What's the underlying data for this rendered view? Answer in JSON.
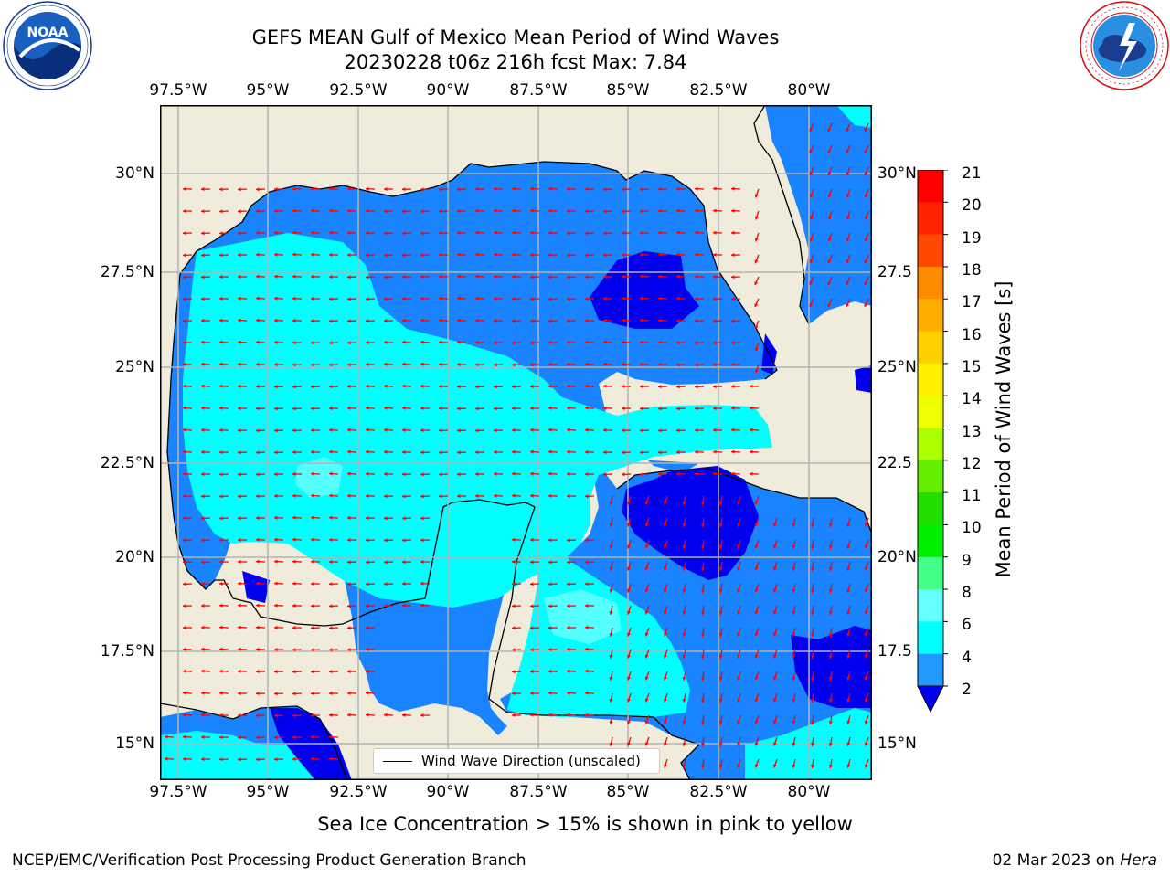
{
  "header": {
    "title_line1": "GEFS MEAN Gulf of Mexico Mean Period of Wind Waves",
    "title_line2": "20230228 t06z 216h fcst   Max: 7.84"
  },
  "logos": {
    "noaa": {
      "text": "NOAA",
      "ring_text": "NATIONAL OCEANIC AND ATMOSPHERIC ADMINISTRATION · U.S. DEPARTMENT OF COMMERCE"
    },
    "nws": {
      "ring_text": "NATIONAL WEATHER SERVICE"
    }
  },
  "axes": {
    "lon_ticks": [
      "97.5°W",
      "95°W",
      "92.5°W",
      "90°W",
      "87.5°W",
      "85°W",
      "82.5°W",
      "80°W"
    ],
    "lat_ticks": [
      "30°N",
      "27.5°N",
      "25°N",
      "22.5°N",
      "20°N",
      "17.5°N",
      "15°N"
    ],
    "lat_ticks_right": [
      "30°N",
      "27.5",
      "25°N",
      "22.5",
      "20°N",
      "17.5",
      "15°N"
    ],
    "lon_range": [
      -98,
      -78.2
    ],
    "lat_range": [
      14.0,
      31.6
    ],
    "grid": true
  },
  "colorbar": {
    "label": "Mean Period of Wind Waves [s]",
    "ticks": [
      "21",
      "20",
      "19",
      "18",
      "17",
      "16",
      "15",
      "14",
      "13",
      "12",
      "11",
      "10",
      "9",
      "8",
      "6",
      "4",
      "2"
    ],
    "colors": [
      "#ff0000",
      "#ff2400",
      "#ff4800",
      "#ff6a00",
      "#ff8c00",
      "#ffae00",
      "#ffd000",
      "#fff000",
      "#eeff00",
      "#ccff00",
      "#aaff00",
      "#66ee00",
      "#22dd00",
      "#00ee00",
      "#44ff88",
      "#99ffcc",
      "#66ffff",
      "#00ffff",
      "#2299ff"
    ],
    "extend_color": "#0000ee"
  },
  "legend": {
    "label": "Wind Wave Direction (unscaled)"
  },
  "colors": {
    "land": "#efecdc",
    "water_2_4": "#1a83ff",
    "water_4_6": "#00ffff",
    "water_6_8": "#55ffff",
    "water_lt2": "#0000ee",
    "arrow": "#ff0000"
  },
  "footer": {
    "sea_ice_note": "Sea Ice Concentration > 15% is shown in pink to yellow",
    "credit": "NCEP/EMC/Verification Post Processing Product Generation Branch",
    "date": "02 Mar 2023 on",
    "host": "Hera"
  }
}
